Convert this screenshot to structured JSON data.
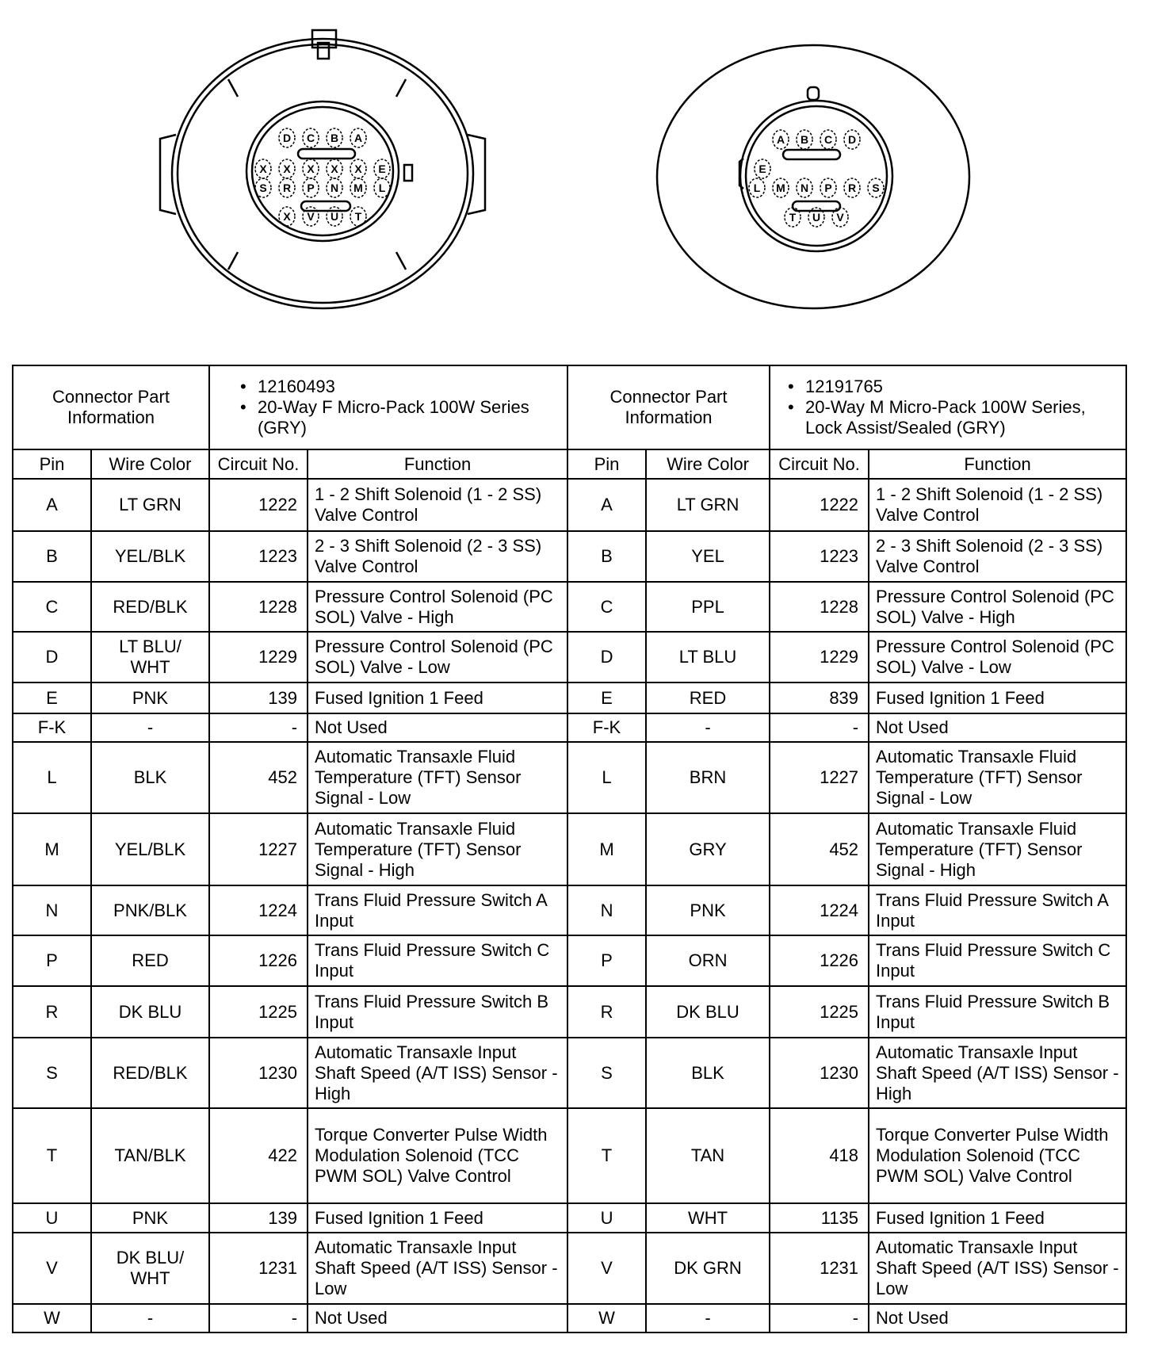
{
  "connectors": [
    {
      "pins_rows": [
        [
          "D",
          "C",
          "B",
          "A"
        ],
        [
          "X",
          "X",
          "X",
          "X",
          "X",
          "E"
        ],
        [
          "S",
          "R",
          "P",
          "N",
          "M",
          "L"
        ],
        [
          "X",
          "V",
          "U",
          "T"
        ]
      ]
    },
    {
      "pins_rows": [
        [
          "A",
          "B",
          "C",
          "D"
        ],
        [
          "E"
        ],
        [
          "L",
          "M",
          "N",
          "P",
          "R",
          "S"
        ],
        [
          "T",
          "U",
          "V"
        ]
      ]
    }
  ],
  "header": {
    "left": {
      "label": "Connector Part Information",
      "items": [
        "12160493",
        "20-Way F Micro-Pack 100W Series (GRY)"
      ]
    },
    "right": {
      "label": "Connector Part Information",
      "items": [
        "12191765",
        "20-Way M Micro-Pack 100W Series, Lock Assist/Sealed (GRY)"
      ]
    }
  },
  "columns": [
    "Pin",
    "Wire Color",
    "Circuit No.",
    "Function"
  ],
  "rows": [
    {
      "h": 66,
      "l": [
        "A",
        "LT GRN",
        "1222",
        "1 - 2 Shift Solenoid (1 - 2 SS) Valve Control"
      ],
      "r": [
        "A",
        "LT GRN",
        "1222",
        "1 - 2 Shift Solenoid (1 - 2 SS) Valve Control"
      ]
    },
    {
      "h": 64,
      "l": [
        "B",
        "YEL/BLK",
        "1223",
        "2 - 3 Shift Solenoid (2 - 3 SS) Valve Control"
      ],
      "r": [
        "B",
        "YEL",
        "1223",
        "2 - 3 Shift Solenoid (2 - 3 SS) Valve Control"
      ]
    },
    {
      "h": 63,
      "l": [
        "C",
        "RED/BLK",
        "1228",
        "Pressure Control Solenoid (PC SOL) Valve - High"
      ],
      "r": [
        "C",
        "PPL",
        "1228",
        "Pressure Control Solenoid (PC SOL) Valve - High"
      ]
    },
    {
      "h": 64,
      "l": [
        "D",
        "LT BLU/ WHT",
        "1229",
        "Pressure Control Solenoid (PC SOL) Valve - Low"
      ],
      "r": [
        "D",
        "LT BLU",
        "1229",
        "Pressure Control Solenoid (PC SOL) Valve - Low"
      ]
    },
    {
      "h": 39,
      "l": [
        "E",
        "PNK",
        "139",
        "Fused Ignition 1 Feed"
      ],
      "r": [
        "E",
        "RED",
        "839",
        "Fused Ignition 1 Feed"
      ]
    },
    {
      "h": 36,
      "l": [
        "F-K",
        "-",
        "-",
        "Not Used"
      ],
      "r": [
        "F-K",
        "-",
        "-",
        "Not Used"
      ]
    },
    {
      "h": 90,
      "l": [
        "L",
        "BLK",
        "452",
        "Automatic Transaxle Fluid Temperature (TFT) Sensor Signal - Low"
      ],
      "r": [
        "L",
        "BRN",
        "1227",
        "Automatic Transaxle Fluid Temperature (TFT) Sensor Signal - Low"
      ]
    },
    {
      "h": 91,
      "l": [
        "M",
        "YEL/BLK",
        "1227",
        "Automatic Transaxle Fluid Temperature (TFT) Sensor Signal - High"
      ],
      "r": [
        "M",
        "GRY",
        "452",
        "Automatic Transaxle Fluid Temperature (TFT) Sensor Signal - High"
      ]
    },
    {
      "h": 63,
      "l": [
        "N",
        "PNK/BLK",
        "1224",
        "Trans Fluid Pressure Switch A Input"
      ],
      "r": [
        "N",
        "PNK",
        "1224",
        "Trans Fluid Pressure Switch A Input"
      ]
    },
    {
      "h": 64,
      "l": [
        "P",
        "RED",
        "1226",
        "Trans Fluid Pressure Switch C Input"
      ],
      "r": [
        "P",
        "ORN",
        "1226",
        "Trans Fluid Pressure Switch C Input"
      ]
    },
    {
      "h": 65,
      "l": [
        "R",
        "DK BLU",
        "1225",
        "Trans Fluid Pressure Switch B Input"
      ],
      "r": [
        "R",
        "DK BLU",
        "1225",
        "Trans Fluid Pressure Switch B Input"
      ]
    },
    {
      "h": 89,
      "l": [
        "S",
        "RED/BLK",
        "1230",
        "Automatic Transaxle Input Shaft Speed (A/T ISS) Sensor - High"
      ],
      "r": [
        "S",
        "BLK",
        "1230",
        "Automatic Transaxle Input Shaft Speed (A/T ISS) Sensor - High"
      ]
    },
    {
      "h": 120,
      "l": [
        "T",
        "TAN/BLK",
        "422",
        "Torque Converter Pulse Width Modulation Solenoid (TCC PWM SOL) Valve Control"
      ],
      "r": [
        "T",
        "TAN",
        "418",
        "Torque Converter Pulse Width Modulation Solenoid (TCC PWM SOL) Valve Control"
      ]
    },
    {
      "h": 37,
      "l": [
        "U",
        "PNK",
        "139",
        "Fused Ignition 1 Feed"
      ],
      "r": [
        "U",
        "WHT",
        "1135",
        "Fused Ignition 1 Feed"
      ]
    },
    {
      "h": 90,
      "l": [
        "V",
        "DK BLU/ WHT",
        "1231",
        "Automatic Transaxle Input Shaft Speed (A/T ISS) Sensor - Low"
      ],
      "r": [
        "V",
        "DK GRN",
        "1231",
        "Automatic Transaxle Input Shaft Speed (A/T ISS) Sensor - Low"
      ]
    },
    {
      "h": 36,
      "l": [
        "W",
        "-",
        "-",
        "Not Used"
      ],
      "r": [
        "W",
        "-",
        "-",
        "Not Used"
      ]
    }
  ]
}
